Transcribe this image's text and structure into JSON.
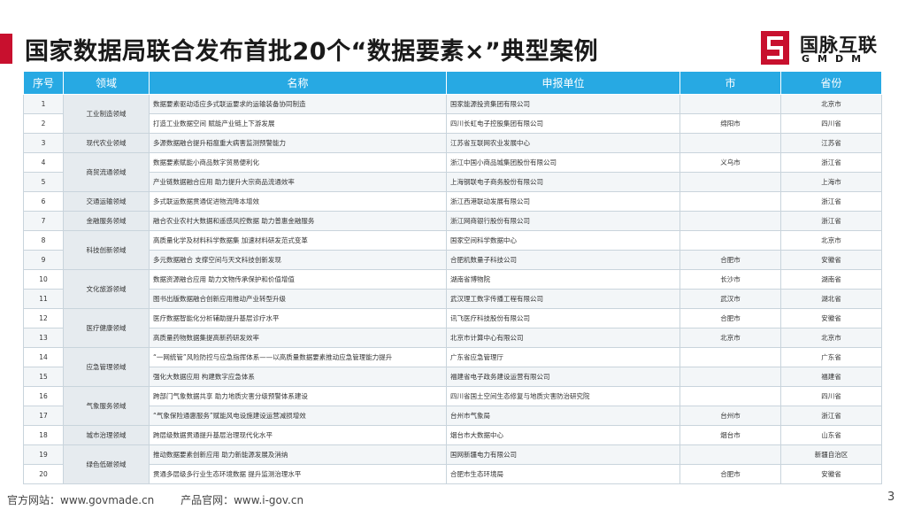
{
  "header": {
    "title": "国家数据局联合发布首批20个“数据要素×”典型案例"
  },
  "logo": {
    "name": "国脉互联",
    "sub": "GMDM",
    "mark_color": "#c8102e"
  },
  "table": {
    "headers": [
      "序号",
      "领域",
      "名称",
      "申报单位",
      "市",
      "省份"
    ],
    "header_color": "#27a9e3",
    "rows": [
      {
        "no": "1",
        "domain": "工业制造领域",
        "name": "数据要素驱动适应多式联运要求的运输装备协同制造",
        "org": "国家能源投资集团有限公司",
        "city": "",
        "prov": "北京市"
      },
      {
        "no": "2",
        "domain": "",
        "name": "打造工业数据空间 赋能产业链上下游发展",
        "org": "四川长虹电子控股集团有限公司",
        "city": "绵阳市",
        "prov": "四川省"
      },
      {
        "no": "3",
        "domain": "现代农业领域",
        "name": "多源数据融合提升稻瘟重大病害监测预警能力",
        "org": "江苏省互联网农业发展中心",
        "city": "",
        "prov": "江苏省"
      },
      {
        "no": "4",
        "domain": "商贸流通领域",
        "name": "数据要素赋能小商品数字贸易便利化",
        "org": "浙江中国小商品城集团股份有限公司",
        "city": "义乌市",
        "prov": "浙江省"
      },
      {
        "no": "5",
        "domain": "",
        "name": "产业链数据融合应用 助力提升大宗商品流通效率",
        "org": "上海钢联电子商务股份有限公司",
        "city": "",
        "prov": "上海市"
      },
      {
        "no": "6",
        "domain": "交通运输领域",
        "name": "多式联运数据贯通促进物流降本增效",
        "org": "浙江西港联动发展有限公司",
        "city": "",
        "prov": "浙江省"
      },
      {
        "no": "7",
        "domain": "金融服务领域",
        "name": "融合农业农村大数据和遥感风控数据 助力普惠金融服务",
        "org": "浙江网商银行股份有限公司",
        "city": "",
        "prov": "浙江省"
      },
      {
        "no": "8",
        "domain": "科技创新领域",
        "name": "高质量化学及材料科学数据集 加速材料研发范式变革",
        "org": "国家空间科学数据中心",
        "city": "",
        "prov": "北京市"
      },
      {
        "no": "9",
        "domain": "",
        "name": "多元数据融合 支撑空间与天文科技创新发现",
        "org": "合肥机数量子科技公司",
        "city": "合肥市",
        "prov": "安徽省"
      },
      {
        "no": "10",
        "domain": "文化旅游领域",
        "name": "数据资源融合应用 助力文物传承保护和价值增值",
        "org": "湖南省博物院",
        "city": "长沙市",
        "prov": "湖南省"
      },
      {
        "no": "11",
        "domain": "",
        "name": "图书出版数据融合创新应用推动产业转型升级",
        "org": "武汉理工数字传播工程有限公司",
        "city": "武汉市",
        "prov": "湖北省"
      },
      {
        "no": "12",
        "domain": "医疗健康领域",
        "name": "医疗数据智能化分析辅助提升基层诊疗水平",
        "org": "讯飞医疗科技股份有限公司",
        "city": "合肥市",
        "prov": "安徽省"
      },
      {
        "no": "13",
        "domain": "",
        "name": "高质量药物数据集提高新药研发效率",
        "org": "北京市计算中心有限公司",
        "city": "北京市",
        "prov": "北京市"
      },
      {
        "no": "14",
        "domain": "应急管理领域",
        "name": "“一网统管”风险防控与应急指挥体系——以高质量数据要素推动应急管理能力提升",
        "org": "广东省应急管理厅",
        "city": "",
        "prov": "广东省"
      },
      {
        "no": "15",
        "domain": "",
        "name": "强化大数据应用 构建数字应急体系",
        "org": "福建省电子政务建设运营有限公司",
        "city": "",
        "prov": "福建省"
      },
      {
        "no": "16",
        "domain": "气象服务领域",
        "name": "跨部门气象数据共享 助力地质灾害分级预警体系建设",
        "org": "四川省国土空间生态修复与地质灾害防治研究院",
        "city": "",
        "prov": "四川省"
      },
      {
        "no": "17",
        "domain": "",
        "name": "“气象保险通惠服务”赋能风电设施建设运营减损增效",
        "org": "台州市气象局",
        "city": "台州市",
        "prov": "浙江省"
      },
      {
        "no": "18",
        "domain": "城市治理领域",
        "name": "跨层级数据贯通提升基层治理现代化水平",
        "org": "烟台市大数据中心",
        "city": "烟台市",
        "prov": "山东省"
      },
      {
        "no": "19",
        "domain": "绿色低碳领域",
        "name": "推动数据要素创新应用 助力新能源发展及消纳",
        "org": "国网新疆电力有限公司",
        "city": "",
        "prov": "新疆自治区"
      },
      {
        "no": "20",
        "domain": "",
        "name": "贯通多层级多行业生态环境数据 提升监测治理水平",
        "org": "合肥市生态环境局",
        "city": "合肥市",
        "prov": "安徽省"
      }
    ]
  },
  "footer": {
    "site": "官方网站：www.govmade.cn",
    "product": "产品官网：www.i-gov.cn",
    "page": "3"
  }
}
